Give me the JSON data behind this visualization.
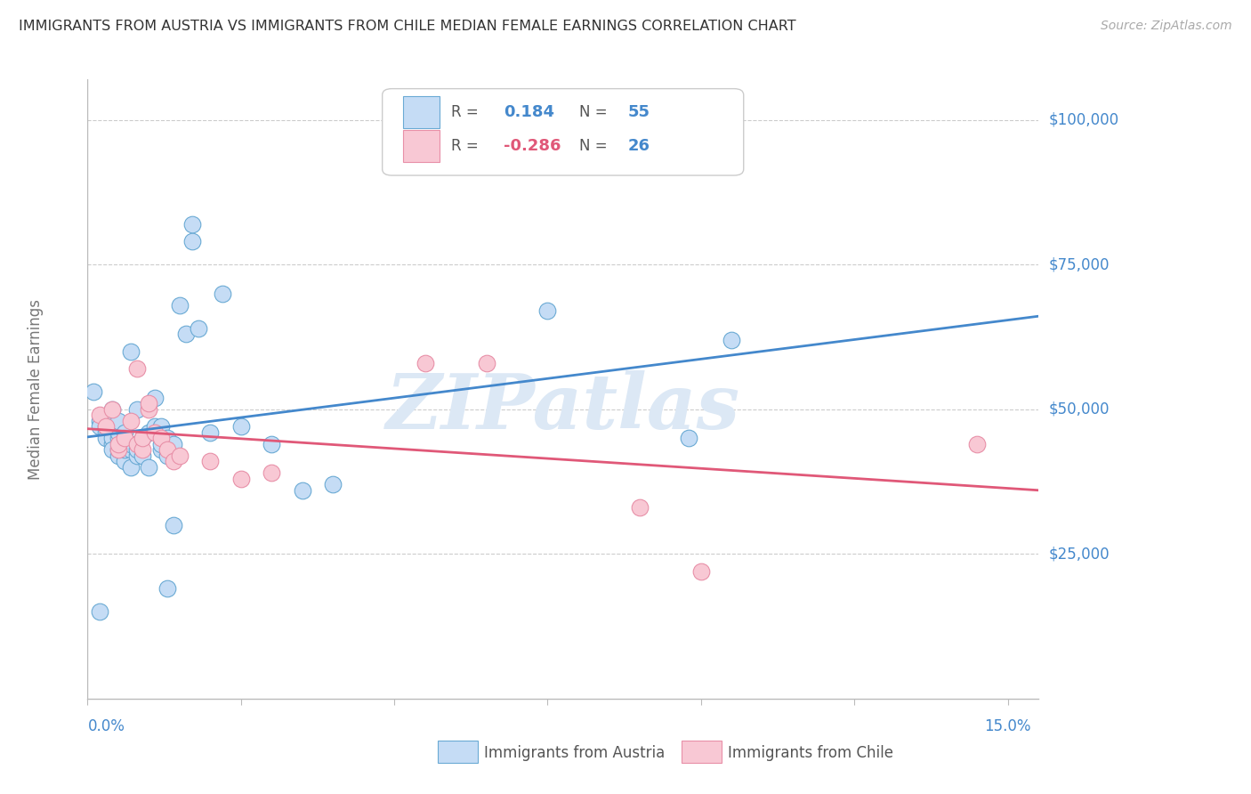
{
  "title": "IMMIGRANTS FROM AUSTRIA VS IMMIGRANTS FROM CHILE MEDIAN FEMALE EARNINGS CORRELATION CHART",
  "source": "Source: ZipAtlas.com",
  "ylabel": "Median Female Earnings",
  "xlim": [
    0.0,
    0.155
  ],
  "ylim": [
    0,
    107000
  ],
  "ytick_vals": [
    25000,
    50000,
    75000,
    100000
  ],
  "ytick_labels": [
    "$25,000",
    "$50,000",
    "$75,000",
    "$100,000"
  ],
  "xtick_vals": [
    0.0,
    0.025,
    0.05,
    0.075,
    0.1,
    0.125,
    0.15
  ],
  "austria_R": 0.184,
  "austria_N": 55,
  "chile_R": -0.286,
  "chile_N": 26,
  "austria_fill": "#c5dcf5",
  "austria_edge": "#6aaad4",
  "austria_line": "#4488cc",
  "chile_fill": "#f8c8d4",
  "chile_edge": "#e890a8",
  "chile_line": "#e05878",
  "bg_color": "#ffffff",
  "grid_color": "#cccccc",
  "title_color": "#333333",
  "source_color": "#aaaaaa",
  "ylabel_color": "#777777",
  "yaxis_val_color": "#4488cc",
  "xtick_color": "#4488cc",
  "watermark_color": "#dce8f5",
  "legend_text_color": "#555555",
  "legend_val_color": "#4488cc",
  "legend_chile_val_color": "#e05878",
  "austria_x": [
    0.001,
    0.002,
    0.002,
    0.003,
    0.003,
    0.003,
    0.004,
    0.004,
    0.004,
    0.004,
    0.005,
    0.005,
    0.005,
    0.005,
    0.005,
    0.006,
    0.006,
    0.006,
    0.006,
    0.007,
    0.007,
    0.007,
    0.007,
    0.008,
    0.008,
    0.008,
    0.009,
    0.009,
    0.01,
    0.01,
    0.011,
    0.011,
    0.012,
    0.012,
    0.012,
    0.013,
    0.013,
    0.013,
    0.014,
    0.014,
    0.015,
    0.016,
    0.017,
    0.017,
    0.018,
    0.02,
    0.022,
    0.025,
    0.03,
    0.035,
    0.04,
    0.075,
    0.098,
    0.105,
    0.002
  ],
  "austria_y": [
    53000,
    48000,
    47000,
    46000,
    45000,
    47000,
    44000,
    45000,
    43000,
    50000,
    42000,
    43000,
    45000,
    46000,
    48000,
    41000,
    43000,
    44000,
    46000,
    40000,
    43000,
    44000,
    60000,
    42000,
    43000,
    50000,
    42000,
    45000,
    40000,
    46000,
    47000,
    52000,
    43000,
    44000,
    47000,
    42000,
    45000,
    19000,
    30000,
    44000,
    68000,
    63000,
    79000,
    82000,
    64000,
    46000,
    70000,
    47000,
    44000,
    36000,
    37000,
    67000,
    45000,
    62000,
    15000
  ],
  "chile_x": [
    0.002,
    0.003,
    0.004,
    0.005,
    0.005,
    0.006,
    0.007,
    0.008,
    0.008,
    0.009,
    0.009,
    0.01,
    0.01,
    0.011,
    0.012,
    0.013,
    0.014,
    0.015,
    0.02,
    0.025,
    0.03,
    0.055,
    0.065,
    0.09,
    0.1,
    0.145
  ],
  "chile_y": [
    49000,
    47000,
    50000,
    43000,
    44000,
    45000,
    48000,
    44000,
    57000,
    43000,
    45000,
    50000,
    51000,
    46000,
    45000,
    43000,
    41000,
    42000,
    41000,
    38000,
    39000,
    58000,
    58000,
    33000,
    22000,
    44000
  ]
}
